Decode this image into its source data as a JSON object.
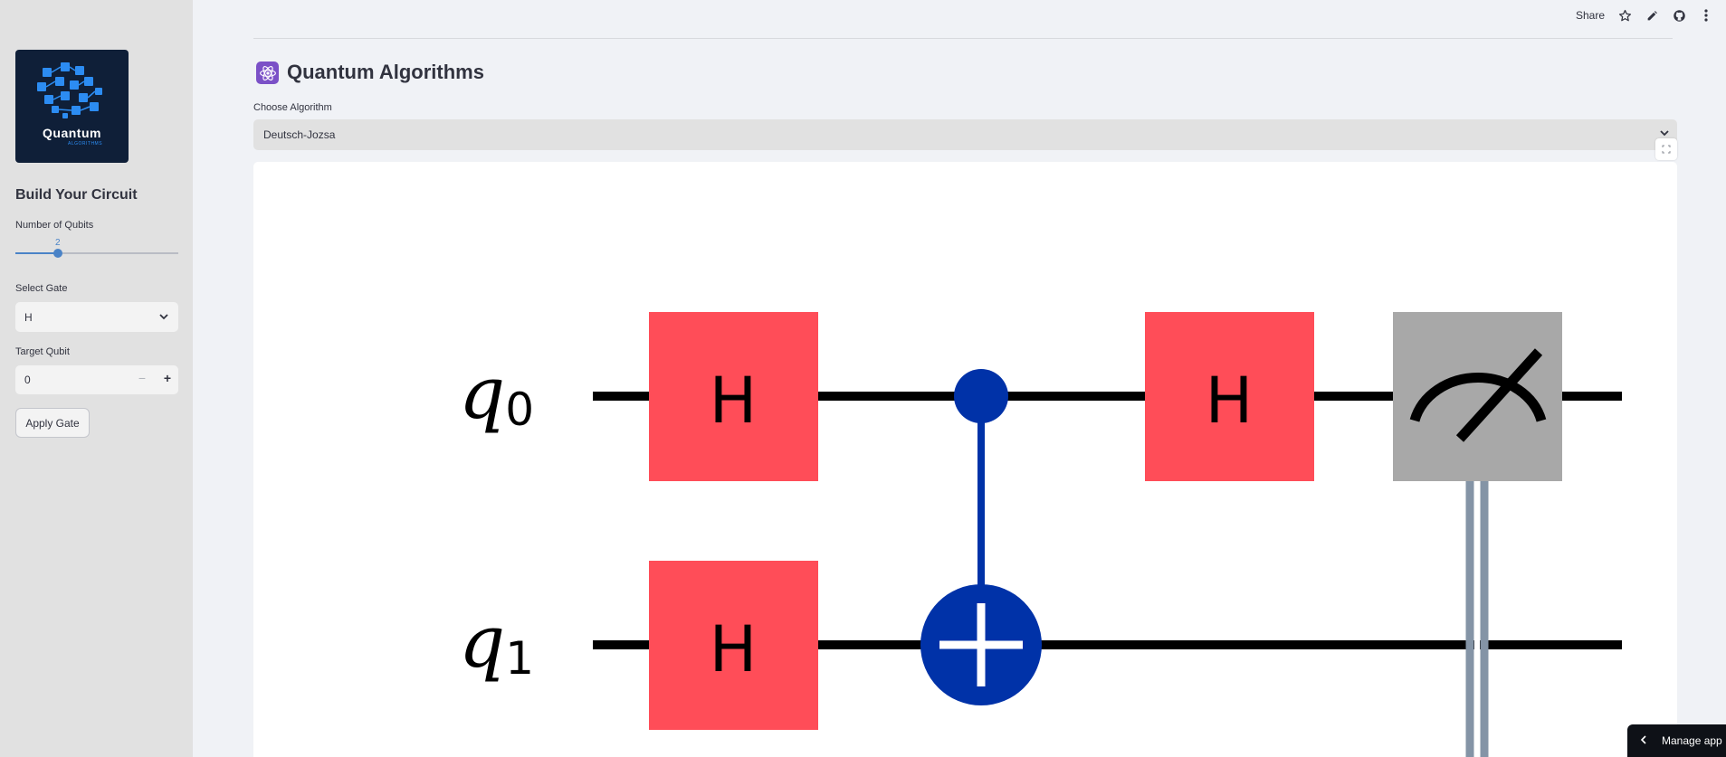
{
  "sidebar": {
    "logo": {
      "text": "Quantum",
      "subtext": "ALGORITHMS"
    },
    "title": "Build Your Circuit",
    "qubits": {
      "label": "Number of Qubits",
      "value": "2",
      "min": 1,
      "max": 8,
      "fraction": 0.26
    },
    "gate": {
      "label": "Select Gate",
      "value": "H"
    },
    "target": {
      "label": "Target Qubit",
      "value": "0",
      "minus": "−",
      "plus": "+"
    },
    "apply_label": "Apply Gate"
  },
  "toolbar": {
    "share_label": "Share"
  },
  "main": {
    "title": "Quantum Algorithms",
    "algo_label": "Choose Algorithm",
    "algo_value": "Deutsch-Jozsa"
  },
  "circuit": {
    "qubits": [
      {
        "label": "q",
        "index": "0"
      },
      {
        "label": "q",
        "index": "1"
      }
    ],
    "gates": {
      "h_label": "H"
    },
    "colors": {
      "h_gate": "#ff4d58",
      "control": "#0032a8",
      "measure": "#a8a8a8",
      "classical": "#8494a6"
    }
  },
  "manage_label": "Manage app"
}
